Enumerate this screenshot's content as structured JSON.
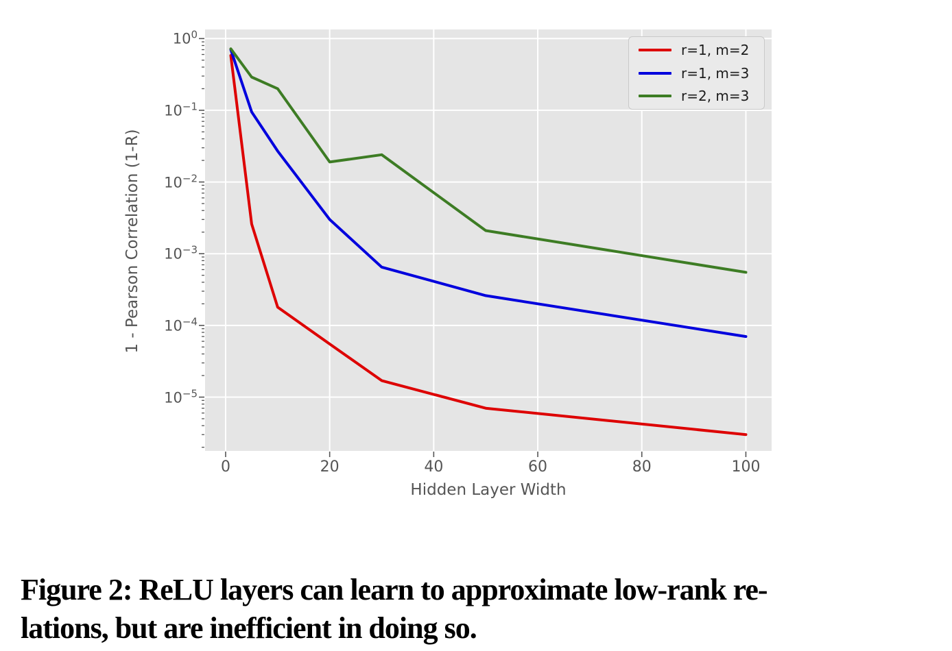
{
  "figure": {
    "caption_lines": [
      "Figure 2: ReLU layers can learn to approximate low-rank re-",
      "lations, but are inefficient in doing so."
    ]
  },
  "chart_data": {
    "type": "line",
    "title": "",
    "xlabel": "Hidden Layer Width",
    "ylabel": "1 - Pearson Correlation (1-R)",
    "yscale": "log",
    "grid": true,
    "legend_position": "upper right",
    "plot_bg": "#e5e5e5",
    "grid_color": "#ffffff",
    "tick_color": "#555555",
    "x": [
      1,
      5,
      10,
      20,
      30,
      50,
      100
    ],
    "series": [
      {
        "name": "r=1, m=2",
        "color": "#dd0000",
        "values": [
          0.58,
          0.0026,
          0.00018,
          5.5e-05,
          1.7e-05,
          7e-06,
          3e-06
        ]
      },
      {
        "name": "r=1, m=3",
        "color": "#0000dd",
        "values": [
          0.7,
          0.095,
          0.027,
          0.003,
          0.00065,
          0.00026,
          7e-05
        ]
      },
      {
        "name": "r=2, m=3",
        "color": "#3d7c24",
        "values": [
          0.72,
          0.29,
          0.2,
          0.019,
          0.024,
          0.0021,
          0.00055
        ]
      }
    ],
    "x_ticks": [
      0,
      20,
      40,
      60,
      80,
      100
    ],
    "y_tick_exponents": [
      0,
      -1,
      -2,
      -3,
      -4,
      -5
    ],
    "xlim": [
      -3.95,
      104.95
    ],
    "ylim_log10": [
      -5.75,
      0.127
    ]
  }
}
